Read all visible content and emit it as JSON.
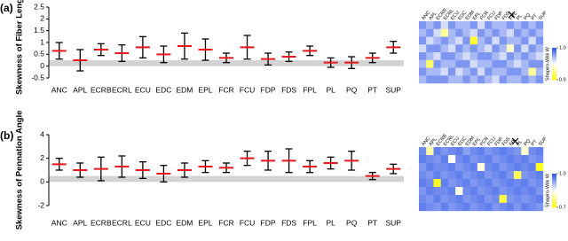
{
  "chart_data": [
    {
      "type": "errorbar",
      "panel_label": "(a)",
      "ylabel": "Skewness of Fiber Length",
      "categories": [
        "ANC",
        "APL",
        "ECRB",
        "ECRL",
        "ECU",
        "EDC",
        "EDM",
        "EPL",
        "FCR",
        "FCU",
        "FDP",
        "FDS",
        "FPL",
        "PL",
        "PQ",
        "PT",
        "SUP"
      ],
      "values": [
        0.65,
        0.25,
        0.7,
        0.55,
        0.8,
        0.5,
        0.85,
        0.7,
        0.35,
        0.8,
        0.3,
        0.4,
        0.65,
        0.15,
        0.15,
        0.35,
        0.8
      ],
      "errors": [
        0.35,
        0.45,
        0.25,
        0.35,
        0.45,
        0.35,
        0.55,
        0.45,
        0.2,
        0.5,
        0.25,
        0.2,
        0.2,
        0.2,
        0.25,
        0.2,
        0.25
      ],
      "mean_color": "#e8161b",
      "error_color": "#000000",
      "band": [
        0,
        0.25
      ],
      "band_color": "#d3d3d3",
      "ylim": [
        -0.5,
        2.5
      ],
      "yticks": [
        -0.5,
        0,
        0.5,
        1,
        1.5,
        2,
        2.5
      ]
    },
    {
      "type": "heatmap",
      "colorbar_label": "Shapiro-Wilk W",
      "categories": [
        "ANC",
        "APL",
        "ECRB",
        "ECRL",
        "ECU",
        "EDC",
        "EDM",
        "EPL",
        "FCR",
        "FCU",
        "FDP",
        "FDS",
        "FPL",
        "PL",
        "PQ",
        "PT",
        "SUP"
      ],
      "zlim": [
        0.9,
        1.0
      ],
      "zticks": [
        {
          "value": 1.0,
          "label": "1.0"
        },
        {
          "value": 0.9,
          "label": "0.9"
        }
      ],
      "values": [
        [
          0.98,
          0.97,
          0.98,
          0.96,
          0.98,
          0.97,
          0.97,
          0.98,
          0.96,
          0.98,
          0.97,
          0.97,
          0.98,
          0.97,
          0.98,
          0.97,
          0.98
        ],
        [
          0.97,
          0.98,
          0.96,
          0.93,
          0.97,
          0.98,
          0.97,
          0.96,
          0.98,
          0.97,
          0.98,
          0.97,
          0.96,
          0.98,
          0.97,
          0.98,
          0.97
        ],
        [
          0.98,
          0.96,
          0.97,
          0.98,
          0.97,
          0.96,
          0.98,
          0.91,
          0.97,
          0.98,
          0.96,
          0.98,
          0.97,
          0.97,
          0.98,
          0.96,
          0.98
        ],
        [
          0.96,
          0.98,
          0.98,
          0.97,
          0.96,
          0.98,
          0.97,
          0.98,
          0.97,
          0.96,
          0.98,
          0.97,
          0.94,
          0.98,
          0.96,
          0.98,
          0.97
        ],
        [
          0.98,
          0.97,
          0.96,
          0.98,
          0.98,
          0.97,
          0.96,
          0.97,
          0.98,
          0.98,
          0.97,
          0.96,
          0.98,
          0.97,
          0.98,
          0.97,
          0.96
        ],
        [
          0.97,
          0.92,
          0.98,
          0.97,
          0.97,
          0.98,
          0.98,
          0.96,
          0.97,
          0.97,
          0.98,
          0.98,
          0.97,
          0.96,
          0.97,
          0.98,
          0.98
        ],
        [
          0.98,
          0.97,
          0.97,
          0.96,
          0.98,
          0.96,
          0.97,
          0.98,
          0.96,
          0.98,
          0.97,
          0.97,
          0.98,
          0.98,
          0.97,
          0.93,
          0.97
        ],
        [
          0.97,
          0.98,
          0.98,
          0.98,
          0.97,
          0.97,
          0.98,
          0.97,
          0.98,
          0.97,
          0.96,
          0.98,
          0.97,
          0.97,
          0.98,
          0.97,
          0.98
        ]
      ]
    },
    {
      "type": "errorbar",
      "panel_label": "(b)",
      "ylabel": "Skewness of Pennation Angle",
      "categories": [
        "ANC",
        "APL",
        "ECRB",
        "ECRL",
        "ECU",
        "EDC",
        "EDM",
        "EPL",
        "FCR",
        "FCU",
        "FDP",
        "FDS",
        "FPL",
        "PL",
        "PQ",
        "PT",
        "SUP"
      ],
      "values": [
        1.5,
        1.0,
        1.1,
        1.3,
        1.0,
        0.7,
        1.0,
        1.3,
        1.2,
        2.0,
        1.8,
        1.8,
        1.3,
        1.6,
        1.8,
        0.5,
        1.1
      ],
      "errors": [
        0.5,
        0.6,
        1.0,
        0.9,
        0.7,
        0.7,
        0.6,
        0.5,
        0.4,
        0.6,
        0.8,
        1.0,
        0.5,
        0.5,
        0.8,
        0.3,
        0.4
      ],
      "mean_color": "#e8161b",
      "error_color": "#000000",
      "band": [
        0,
        0.5
      ],
      "band_color": "#d3d3d3",
      "ylim": [
        -2,
        4
      ],
      "yticks": [
        -2,
        0,
        2,
        4
      ]
    },
    {
      "type": "heatmap",
      "colorbar_label": "Shapiro-Wilk W",
      "categories": [
        "ANC",
        "APL",
        "ECRB",
        "ECRL",
        "ECU",
        "EDC",
        "EDM",
        "EPL",
        "FCR",
        "FCU",
        "FDP",
        "FDS",
        "FPL",
        "PL",
        "PQ",
        "PT",
        "SUP"
      ],
      "zlim": [
        0.7,
        1.0
      ],
      "zticks": [
        {
          "value": 1.0,
          "label": "1.0"
        },
        {
          "value": 0.7,
          "label": "0.7"
        }
      ],
      "values": [
        [
          0.95,
          0.8,
          0.96,
          0.94,
          0.95,
          0.96,
          0.93,
          0.95,
          0.96,
          0.94,
          0.95,
          0.96,
          0.95,
          0.94,
          0.82,
          0.95,
          0.96
        ],
        [
          0.96,
          0.95,
          0.94,
          0.96,
          0.85,
          0.95,
          0.96,
          0.94,
          0.95,
          0.96,
          0.94,
          0.95,
          0.96,
          0.95,
          0.96,
          0.94,
          0.95
        ],
        [
          0.94,
          0.96,
          0.95,
          0.95,
          0.96,
          0.94,
          0.95,
          0.96,
          0.83,
          0.95,
          0.96,
          0.94,
          0.95,
          0.96,
          0.95,
          0.96,
          0.72
        ],
        [
          0.95,
          0.94,
          0.96,
          0.94,
          0.95,
          0.96,
          0.94,
          0.95,
          0.96,
          0.94,
          0.95,
          0.96,
          0.94,
          0.75,
          0.94,
          0.95,
          0.96
        ],
        [
          0.96,
          0.95,
          0.72,
          0.96,
          0.94,
          0.95,
          0.96,
          0.94,
          0.95,
          0.96,
          0.94,
          0.95,
          0.96,
          0.95,
          0.96,
          0.94,
          0.95
        ],
        [
          0.94,
          0.96,
          0.95,
          0.95,
          0.96,
          0.84,
          0.95,
          0.96,
          0.94,
          0.95,
          0.96,
          0.94,
          0.95,
          0.96,
          0.95,
          0.96,
          0.94
        ],
        [
          0.95,
          0.94,
          0.96,
          0.94,
          0.95,
          0.96,
          0.94,
          0.95,
          0.96,
          0.94,
          0.95,
          0.74,
          0.94,
          0.95,
          0.94,
          0.95,
          0.96
        ],
        [
          0.96,
          0.95,
          0.94,
          0.96,
          0.94,
          0.95,
          0.96,
          0.94,
          0.95,
          0.96,
          0.94,
          0.95,
          0.96,
          0.94,
          0.96,
          0.95,
          0.94
        ]
      ]
    }
  ]
}
